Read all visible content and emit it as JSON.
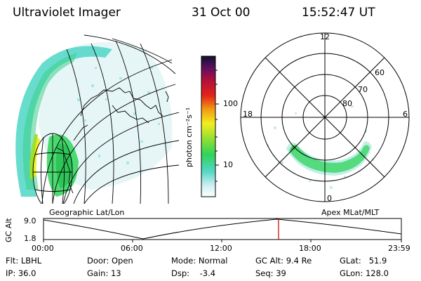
{
  "header": {
    "title": "Ultraviolet Imager",
    "date": "31 Oct 00",
    "time": "15:52:47 UT"
  },
  "colorbar": {
    "label": "photon cm⁻²s⁻¹",
    "ticks": [
      "100",
      "10"
    ]
  },
  "polar_plot": {
    "mlt_labels": [
      "12",
      "18",
      "6",
      "0"
    ],
    "lat_labels": [
      "60",
      "70",
      "80"
    ]
  },
  "map_labels": {
    "left": "Geographic Lat/Lon",
    "right": "Apex MLat/MLT"
  },
  "altitude_plot": {
    "axis_label": "GC Alt",
    "y_ticks": [
      "9.0",
      "1.8"
    ],
    "x_ticks": [
      "00:00",
      "06:00",
      "12:00",
      "18:00",
      "23:59"
    ],
    "current_time_marker_color": "#c00000"
  },
  "info": {
    "flt": "Flt: LBHL",
    "ip": "IP: 36.0",
    "door": "Door: Open",
    "gain": "Gain: 13",
    "mode": "Mode: Normal",
    "dsp": "Dsp:    -3.4",
    "gc_alt": "GC Alt: 9.4 Re",
    "seq": "Seq: 39",
    "glat": "GLat:   51.9",
    "glon": "GLon: 128.0"
  }
}
